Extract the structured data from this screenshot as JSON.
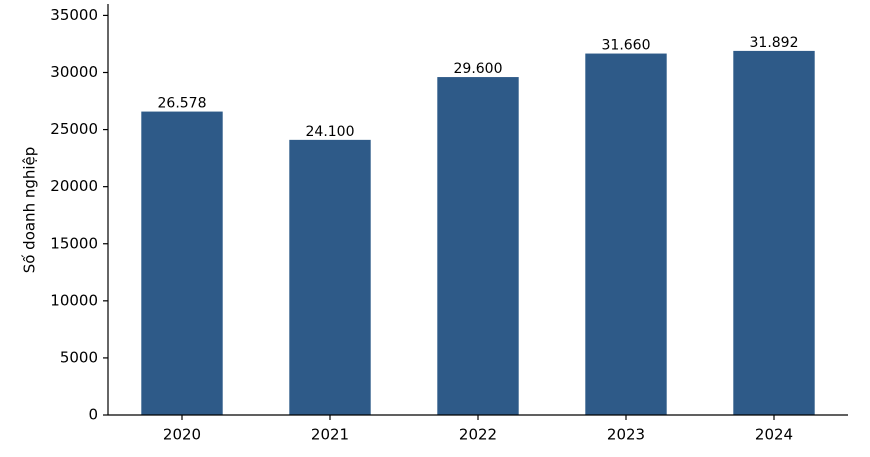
{
  "chart_data": {
    "type": "bar",
    "ylabel": "Số doanh nghiệp",
    "categories": [
      "2020",
      "2021",
      "2022",
      "2023",
      "2024"
    ],
    "values": [
      26578,
      24100,
      29600,
      31660,
      31892
    ],
    "value_labels": [
      "26.578",
      "24.100",
      "29.600",
      "31.660",
      "31.892"
    ],
    "color": "#2e5a88",
    "ylim": [
      0,
      36000
    ],
    "yticks": [
      0,
      5000,
      10000,
      15000,
      20000,
      25000,
      30000,
      35000
    ],
    "grid": false
  }
}
